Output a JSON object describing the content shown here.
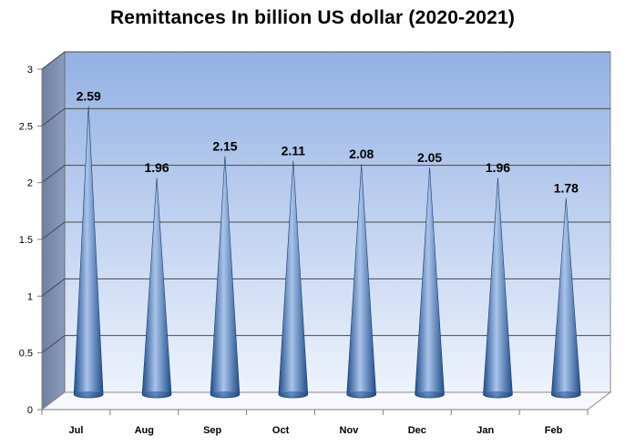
{
  "chart_data": {
    "type": "bar",
    "style": "3d-cone",
    "title": "Remittances In billion US dollar (2020-2021)",
    "xlabel": "",
    "ylabel": "",
    "categories": [
      "Jul",
      "Aug",
      "Sep",
      "Oct",
      "Nov",
      "Dec",
      "Jan",
      "Feb"
    ],
    "values": [
      2.59,
      1.96,
      2.15,
      2.11,
      2.08,
      2.05,
      1.96,
      1.78
    ],
    "data_labels": [
      "2.59",
      "1.96",
      "2.15",
      "2.11",
      "2.08",
      "2.05",
      "1.96",
      "1.78"
    ],
    "ylim": [
      0,
      3
    ],
    "yticks": [
      "0",
      "0.5",
      "1",
      "1.5",
      "2",
      "2.5",
      "3"
    ],
    "grid": true,
    "legend": "none",
    "colors": {
      "cone_dark": "#1f4e8c",
      "cone_mid": "#4f81bd",
      "cone_light": "#a9c4ea",
      "wall_top": "#93b1e4",
      "wall_bottom": "#eef3fc",
      "side_wall": "#7d8fb0",
      "gridline": "#4a4a4a"
    }
  }
}
